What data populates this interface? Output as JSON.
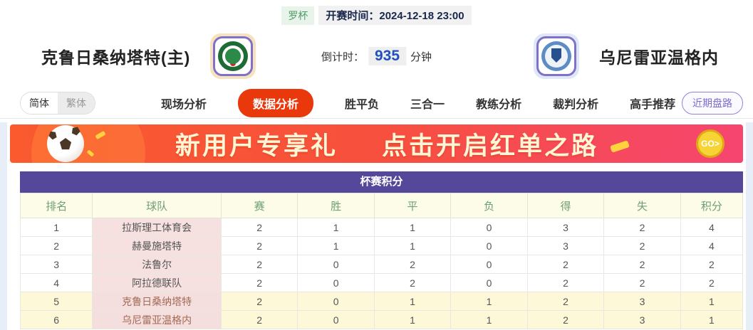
{
  "header": {
    "league_badge": "罗杯",
    "kickoff_text": "开赛时间：2024-12-18 23:00",
    "home_team": "克鲁日桑纳塔特(主)",
    "away_team": "乌尼雷亚温格内",
    "countdown_label": "倒计时：",
    "countdown_value": "935",
    "countdown_unit": "分钟"
  },
  "nav": {
    "lang_simplified": "简体",
    "lang_traditional": "繁体",
    "tabs": [
      {
        "label": "现场分析",
        "active": false
      },
      {
        "label": "数据分析",
        "active": true
      },
      {
        "label": "胜平负",
        "active": false
      },
      {
        "label": "三合一",
        "active": false
      },
      {
        "label": "教练分析",
        "active": false
      },
      {
        "label": "裁判分析",
        "active": false
      },
      {
        "label": "高手推荐",
        "active": false
      }
    ],
    "recent_button": "近期盘路"
  },
  "banner": {
    "text1": "新用户专享礼",
    "text2": "点击开启红单之路",
    "go_label": "GO>",
    "ball_icon": "soccer-ball-icon"
  },
  "table": {
    "title": "杯赛积分",
    "columns": [
      "排名",
      "球队",
      "赛",
      "胜",
      "平",
      "负",
      "得",
      "失",
      "积分"
    ],
    "rows": [
      {
        "rank": "1",
        "team": "拉斯理工体育会",
        "played": "2",
        "win": "1",
        "draw": "1",
        "loss": "0",
        "gf": "3",
        "ga": "2",
        "pts": "4",
        "highlight": false
      },
      {
        "rank": "2",
        "team": "赫曼施塔特",
        "played": "2",
        "win": "1",
        "draw": "1",
        "loss": "0",
        "gf": "3",
        "ga": "2",
        "pts": "4",
        "highlight": false
      },
      {
        "rank": "3",
        "team": "法鲁尔",
        "played": "2",
        "win": "0",
        "draw": "2",
        "loss": "0",
        "gf": "2",
        "ga": "2",
        "pts": "2",
        "highlight": false
      },
      {
        "rank": "4",
        "team": "阿拉德联队",
        "played": "2",
        "win": "0",
        "draw": "2",
        "loss": "0",
        "gf": "2",
        "ga": "2",
        "pts": "2",
        "highlight": false
      },
      {
        "rank": "5",
        "team": "克鲁日桑纳塔特",
        "played": "2",
        "win": "0",
        "draw": "1",
        "loss": "1",
        "gf": "2",
        "ga": "3",
        "pts": "1",
        "highlight": true
      },
      {
        "rank": "6",
        "team": "乌尼雷亚温格内",
        "played": "2",
        "win": "0",
        "draw": "1",
        "loss": "1",
        "gf": "2",
        "ga": "3",
        "pts": "1",
        "highlight": true
      }
    ]
  },
  "colors": {
    "accent_red": "#ea380d",
    "accent_purple": "#55489b",
    "highlight_yellow": "#fcf8d8",
    "team_cell_pink": "#f6e0e0",
    "countdown_blue": "#2050c0"
  }
}
